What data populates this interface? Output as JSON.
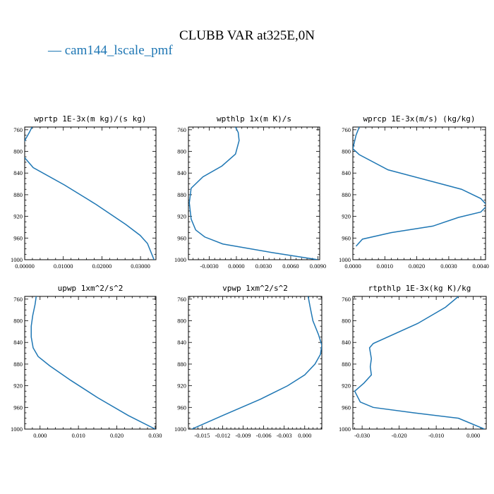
{
  "figure": {
    "title": "CLUBB VAR at325E,0N",
    "legend_label": "— cam144_lscale_pmf",
    "line_color": "#1f77b4"
  },
  "chart_data": [
    {
      "type": "line",
      "title": "wprtp  1E-3x(m kg)/(s kg)",
      "xlabel": "",
      "ylabel": "",
      "xlim": [
        0.0,
        0.034
      ],
      "ylim": [
        1000,
        755
      ],
      "x_ticks": [
        0.0,
        0.01,
        0.02,
        0.03
      ],
      "x_tick_labels": [
        "0.00000",
        "0.01000",
        "0.02000",
        "0.03000"
      ],
      "y_ticks": [
        760,
        800,
        840,
        880,
        920,
        960,
        1000
      ],
      "y_tick_labels": [
        "760",
        "800",
        "840",
        "880",
        "920",
        "960",
        "1000"
      ],
      "series": [
        {
          "x": [
            0.0019,
            0.0012,
            0.0004,
            -0.0003,
            -0.0008,
            0.0022,
            0.0103,
            0.0185,
            0.0262,
            0.0299,
            0.0318,
            0.0335
          ],
          "y": [
            755,
            765,
            775,
            785,
            805,
            830,
            862,
            898,
            935,
            955,
            970,
            1000
          ]
        }
      ]
    },
    {
      "type": "line",
      "title": "wpthlp  1x(m K)/s",
      "xlabel": "",
      "ylabel": "",
      "xlim": [
        -0.0053,
        0.0092
      ],
      "ylim": [
        1000,
        755
      ],
      "x_ticks": [
        -0.003,
        0.0,
        0.003,
        0.006,
        0.009
      ],
      "x_tick_labels": [
        "-0.0030",
        "0.0000",
        "0.0030",
        "0.0060",
        "0.0090"
      ],
      "y_ticks": [
        760,
        800,
        840,
        880,
        920,
        960,
        1000
      ],
      "y_tick_labels": [
        "760",
        "800",
        "840",
        "880",
        "920",
        "960",
        "1000"
      ],
      "series": [
        {
          "x": [
            -0.0001,
            0.0002,
            0.0003,
            -0.0001,
            -0.0016,
            -0.0037,
            -0.005,
            -0.0052,
            -0.005,
            -0.0045,
            -0.0035,
            -0.0015,
            0.004,
            0.009
          ],
          "y": [
            755,
            765,
            780,
            805,
            827,
            847,
            868,
            895,
            925,
            945,
            958,
            971,
            987,
            1000
          ]
        }
      ]
    },
    {
      "type": "line",
      "title": "wprcp  1E-3x(m/s) (kg/kg)",
      "xlabel": "",
      "ylabel": "",
      "xlim": [
        0.0,
        0.00415
      ],
      "ylim": [
        1000,
        755
      ],
      "x_ticks": [
        0.0,
        0.001,
        0.002,
        0.003,
        0.004
      ],
      "x_tick_labels": [
        "0.0000",
        "0.0010",
        "0.0020",
        "0.0030",
        "0.0040"
      ],
      "y_ticks": [
        760,
        800,
        840,
        880,
        920,
        960,
        1000
      ],
      "y_tick_labels": [
        "760",
        "800",
        "840",
        "880",
        "920",
        "960",
        "1000"
      ],
      "series": [
        {
          "x": [
            0.0002,
            0.0001,
            0.0,
            0.0002,
            0.0011,
            0.0034,
            0.004,
            0.0042,
            0.004,
            0.0033,
            0.0025,
            0.0012,
            0.0003,
            0.0001
          ],
          "y": [
            755,
            770,
            795,
            806,
            834,
            870,
            887,
            900,
            912,
            922,
            938,
            950,
            962,
            975
          ]
        }
      ]
    },
    {
      "type": "line",
      "title": "upwp  1xm^2/s^2",
      "xlabel": "",
      "ylabel": "",
      "xlim": [
        -0.004,
        0.0302
      ],
      "ylim": [
        1000,
        755
      ],
      "x_ticks": [
        0.0,
        0.01,
        0.02,
        0.03
      ],
      "x_tick_labels": [
        "0.000",
        "0.010",
        "0.020",
        "0.030"
      ],
      "y_ticks": [
        760,
        800,
        840,
        880,
        920,
        960,
        1000
      ],
      "y_tick_labels": [
        "760",
        "800",
        "840",
        "880",
        "920",
        "960",
        "1000"
      ],
      "series": [
        {
          "x": [
            -0.001,
            -0.0013,
            -0.0019,
            -0.0023,
            -0.0023,
            -0.0018,
            -0.0005,
            0.0025,
            0.008,
            0.015,
            0.023,
            0.03
          ],
          "y": [
            755,
            770,
            790,
            810,
            830,
            850,
            866,
            883,
            910,
            942,
            975,
            1000
          ]
        }
      ]
    },
    {
      "type": "line",
      "title": "vpwp  1xm^2/s^2",
      "xlabel": "",
      "ylabel": "",
      "xlim": [
        -0.017,
        0.0025
      ],
      "ylim": [
        1000,
        755
      ],
      "x_ticks": [
        -0.015,
        -0.012,
        -0.009,
        -0.006,
        -0.003,
        0.0
      ],
      "x_tick_labels": [
        "-0.015",
        "-0.012",
        "-0.009",
        "-0.006",
        "-0.003",
        "0.000"
      ],
      "y_ticks": [
        760,
        800,
        840,
        880,
        920,
        960,
        1000
      ],
      "y_tick_labels": [
        "760",
        "800",
        "840",
        "880",
        "920",
        "960",
        "1000"
      ],
      "series": [
        {
          "x": [
            0.0005,
            0.0008,
            0.0012,
            0.002,
            0.0025,
            0.0023,
            0.0015,
            0.0,
            -0.0025,
            -0.0065,
            -0.012,
            -0.0165
          ],
          "y": [
            755,
            775,
            800,
            825,
            845,
            862,
            880,
            900,
            920,
            945,
            975,
            1000
          ]
        }
      ]
    },
    {
      "type": "line",
      "title": "rtpthlp  1E-3x(kg K)/kg",
      "xlabel": "",
      "ylabel": "",
      "xlim": [
        -0.0325,
        0.0035
      ],
      "ylim": [
        1000,
        755
      ],
      "x_ticks": [
        -0.03,
        -0.02,
        -0.01,
        0.0
      ],
      "x_tick_labels": [
        "-0.030",
        "-0.020",
        "-0.010",
        "0.000"
      ],
      "y_ticks": [
        760,
        800,
        840,
        880,
        920,
        960,
        1000
      ],
      "y_tick_labels": [
        "760",
        "800",
        "840",
        "880",
        "920",
        "960",
        "1000"
      ],
      "series": [
        {
          "x": [
            -0.004,
            -0.0075,
            -0.015,
            -0.027,
            -0.028,
            -0.0275,
            -0.0278,
            -0.0275,
            -0.0295,
            -0.032,
            -0.0305,
            -0.027,
            -0.016,
            -0.004,
            0.003
          ],
          "y": [
            755,
            775,
            805,
            842,
            850,
            870,
            885,
            900,
            915,
            930,
            950,
            960,
            970,
            980,
            1000
          ]
        }
      ]
    }
  ]
}
